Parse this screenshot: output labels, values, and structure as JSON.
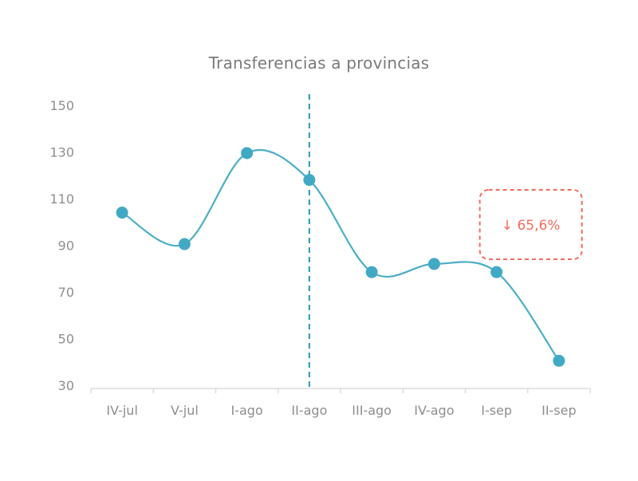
{
  "chart_data": {
    "type": "line",
    "title": "Transferencias a provincias",
    "xlabel": "",
    "ylabel": "",
    "categories": [
      "IV-jul",
      "V-jul",
      "I-ago",
      "II-ago",
      "III-ago",
      "IV-ago",
      "I-sep",
      "II-sep"
    ],
    "values": [
      104,
      90.5,
      129.5,
      118,
      78.5,
      82,
      78.5,
      40.5
    ],
    "ylim": [
      30,
      150
    ],
    "yticks": [
      150,
      130,
      110,
      90,
      70,
      50,
      30
    ],
    "grid": false,
    "legend": "none",
    "reference_line": {
      "category": "II-ago",
      "style": "dashed"
    },
    "annotation": {
      "text": "↓ 65,6%",
      "near": "I-sep"
    },
    "colors": {
      "line": "#4aaec6",
      "point": "#42a9c4",
      "reference_line": "#3b9fb9",
      "annotation": "#f36b5f",
      "axis": "#dcdcdc",
      "text": "#8e8e8e",
      "title": "#7a7a7a"
    }
  }
}
